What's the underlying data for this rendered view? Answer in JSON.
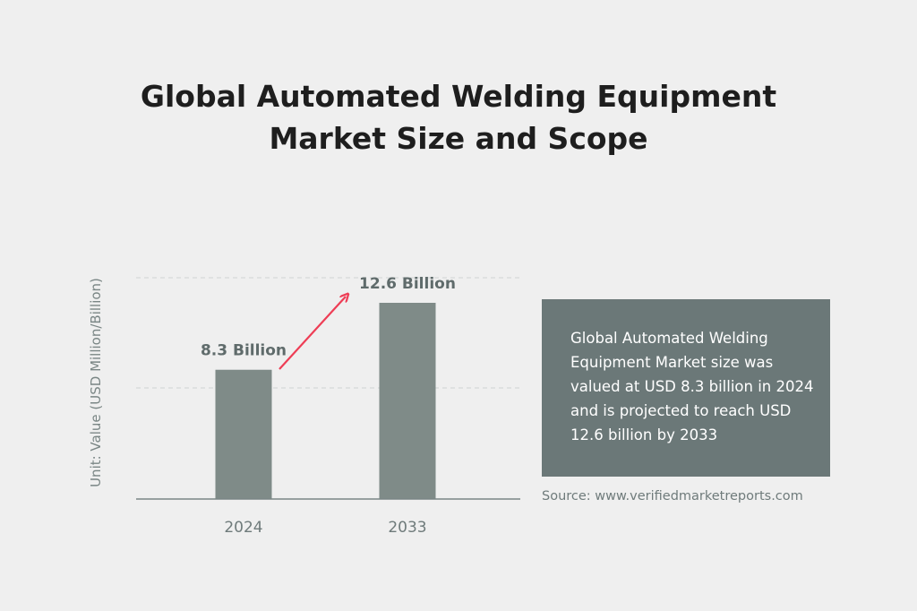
{
  "title": {
    "line1": "Global Automated Welding Equipment",
    "line2": "Market Size and Scope"
  },
  "info_box": {
    "text": "Global Automated Welding Equipment Market size was valued at USD 8.3 billion in 2024 and is projected to reach USD 12.6 billion by 2033"
  },
  "source": "Source: www.verifiedmarketreports.com",
  "colors": {
    "bar": "#7f8b88",
    "arrow": "#ee3d55",
    "box": "#6b7878",
    "text_dark": "#1e1e1e",
    "text_muted": "#6f7b7b"
  },
  "chart_data": {
    "type": "bar",
    "categories": [
      "2024",
      "2033"
    ],
    "values": [
      8.3,
      12.6
    ],
    "data_labels": [
      "8.3 Billion",
      "12.6 Billion"
    ],
    "ylabel": "Unit: Value (USD Million/Billion)",
    "ylim": [
      0,
      15
    ],
    "grid": true,
    "growth_arrow": true
  }
}
